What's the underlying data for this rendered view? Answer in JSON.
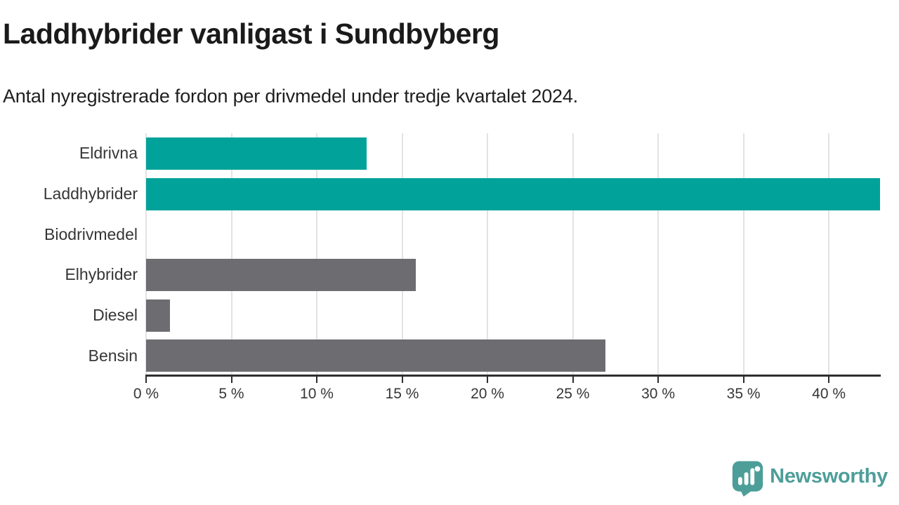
{
  "header": {
    "title": "Laddhybrider vanligast i Sundbyberg",
    "subtitle": "Antal nyregistrerade fordon per drivmedel under tredje kvartalet 2024."
  },
  "chart_data": {
    "type": "bar",
    "orientation": "horizontal",
    "title": "Laddhybrider vanligast i Sundbyberg",
    "subtitle": "Antal nyregistrerade fordon per drivmedel under tredje kvartalet 2024.",
    "categories": [
      "Eldrivna",
      "Laddhybrider",
      "Biodrivmedel",
      "Elhybrider",
      "Diesel",
      "Bensin"
    ],
    "values": [
      12.9,
      43.0,
      0,
      15.8,
      1.4,
      26.9
    ],
    "unit": "%",
    "bar_colors": [
      "#00a29a",
      "#00a29a",
      "#6c6c71",
      "#6c6c71",
      "#6c6c71",
      "#6c6c71"
    ],
    "highlight_color": "#00a29a",
    "default_color": "#6c6c71",
    "xlim": [
      0,
      43
    ],
    "x_ticks": [
      0,
      5,
      10,
      15,
      20,
      25,
      30,
      35,
      40
    ],
    "x_tick_labels": [
      "0 %",
      "5 %",
      "10 %",
      "15 %",
      "20 %",
      "25 %",
      "30 %",
      "35 %",
      "40 %"
    ],
    "grid": true,
    "legend": false,
    "xlabel": "",
    "ylabel": ""
  },
  "footer": {
    "brand": "Newsworthy",
    "brand_color": "#4d9e99"
  }
}
